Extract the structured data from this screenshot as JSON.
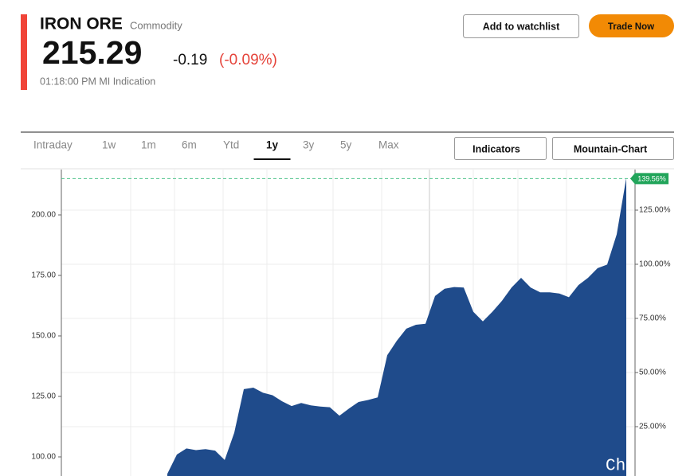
{
  "header": {
    "name": "IRON ORE",
    "category": "Commodity",
    "price": "215.29",
    "change": "-0.19",
    "change_pct": "(-0.09%)",
    "timestamp": "01:18:00 PM MI Indication"
  },
  "buttons": {
    "watchlist": "Add to watchlist",
    "trade": "Trade Now"
  },
  "tabs": [
    "Intraday",
    "1w",
    "1m",
    "6m",
    "Ytd",
    "1y",
    "3y",
    "5y",
    "Max"
  ],
  "active_tab": 5,
  "chart_controls": [
    "Indicators",
    "Mountain-Chart"
  ],
  "chart_data": {
    "type": "area",
    "color": "#1f4b8b",
    "values": [
      93,
      101,
      103.5,
      102.8,
      103.2,
      102.6,
      98.7,
      110,
      128,
      128.6,
      126.5,
      125.5,
      123,
      121,
      122.3,
      121.3,
      120.8,
      120.5,
      117,
      120,
      122.7,
      123.5,
      124.6,
      142,
      148,
      153,
      154.6,
      155,
      166.5,
      169.5,
      170.2,
      170,
      160,
      156,
      160,
      164.5,
      170,
      174,
      170,
      168,
      168,
      167.5,
      166,
      171,
      174,
      178,
      179.5,
      192,
      215.29
    ],
    "ylim": [
      92.1,
      218.75
    ],
    "yticks": [
      {
        "value": 100,
        "label": "100.00"
      },
      {
        "value": 125,
        "label": "125.00"
      },
      {
        "value": 150,
        "label": "150.00"
      },
      {
        "value": 175,
        "label": "175.00"
      },
      {
        "value": 200,
        "label": "200.00"
      }
    ],
    "y2lim": [
      2.2,
      143.75
    ],
    "y2ticks": [
      {
        "value": 25,
        "label": "25.00%"
      },
      {
        "value": 50,
        "label": "50.00%"
      },
      {
        "value": 75,
        "label": "75.00%"
      },
      {
        "value": 100,
        "label": "100.00%"
      },
      {
        "value": 125,
        "label": "125.00%"
      }
    ],
    "last_marker": {
      "value": 139.56,
      "label": "139.56%"
    },
    "watermark": "Ch"
  }
}
